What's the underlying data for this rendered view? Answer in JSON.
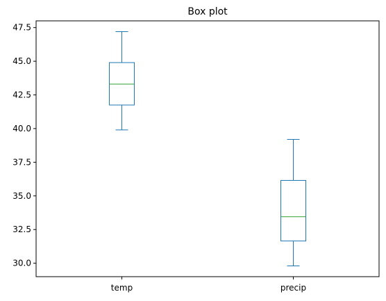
{
  "chart_data": {
    "type": "box",
    "title": "Box plot",
    "xlabel": "",
    "ylabel": "",
    "categories": [
      "temp",
      "precip"
    ],
    "boxes": [
      {
        "category": "temp",
        "whisker_low": 39.9,
        "q1": 41.75,
        "median": 43.3,
        "q3": 44.9,
        "whisker_high": 47.2
      },
      {
        "category": "precip",
        "whisker_low": 29.8,
        "q1": 31.65,
        "median": 33.45,
        "q3": 36.15,
        "whisker_high": 39.2
      }
    ],
    "ylim": [
      29.0,
      48.0
    ],
    "yticks": [
      30.0,
      32.5,
      35.0,
      37.5,
      40.0,
      42.5,
      45.0,
      47.5
    ],
    "ytick_labels": [
      "30.0",
      "32.5",
      "35.0",
      "37.5",
      "40.0",
      "42.5",
      "45.0",
      "47.5"
    ],
    "grid": false,
    "colors": {
      "box": "#1f77b4",
      "median": "#2ca02c",
      "axes": "#000000"
    }
  }
}
